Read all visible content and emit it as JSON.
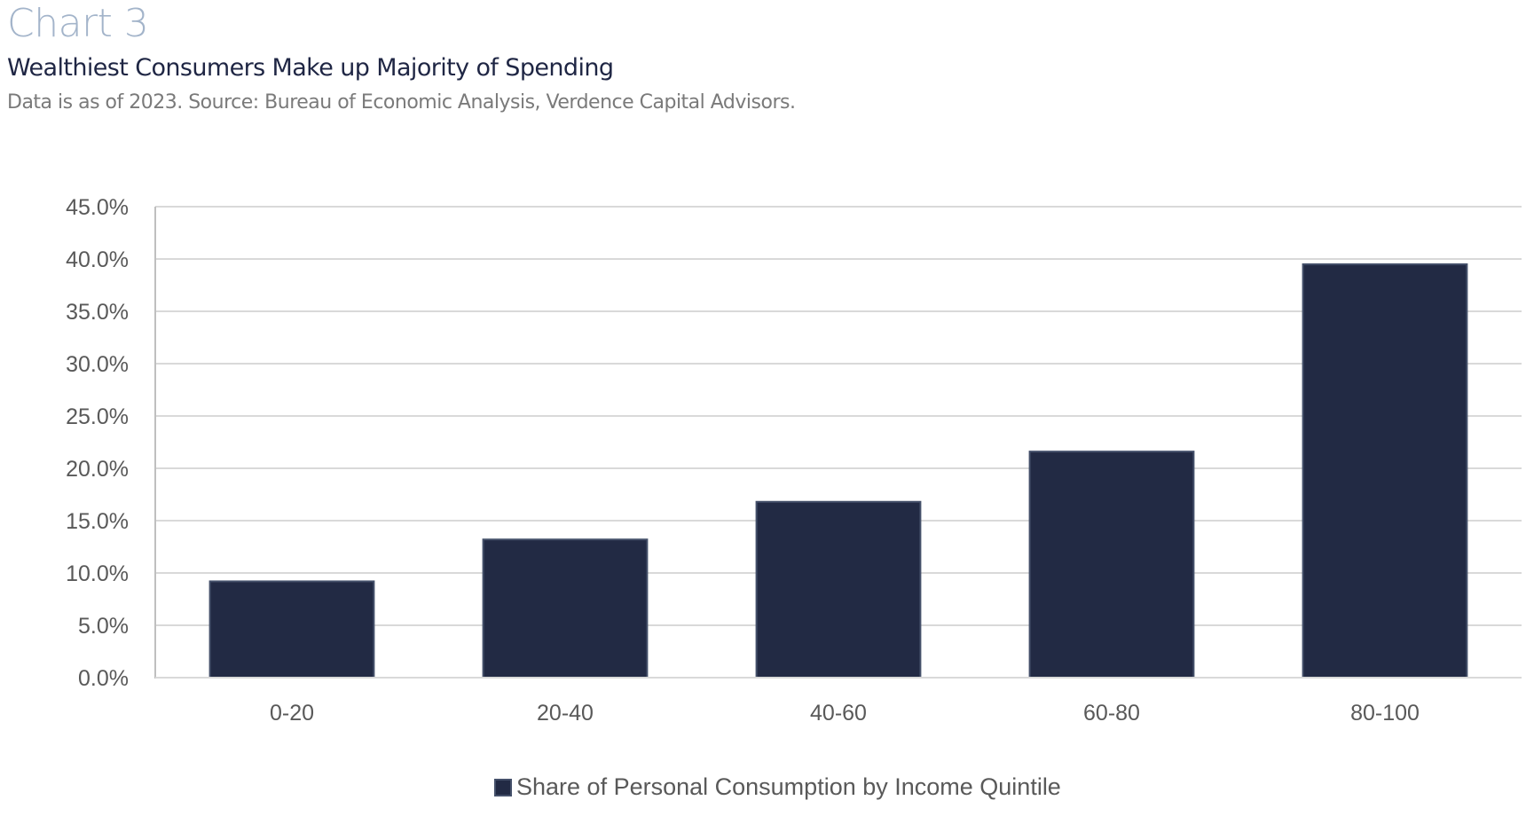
{
  "header": {
    "eyebrow": "Chart 3",
    "title": "Wealthiest Consumers Make up Majority of Spending",
    "subtitle": "Data is as of 2023. Source: Bureau of Economic Analysis, Verdence Capital Advisors."
  },
  "colors": {
    "bar_fill": "#222A44",
    "bar_stroke": "#44506A",
    "grid": "#D9D9D9",
    "axis": "#BFBFBF"
  },
  "chart_data": {
    "type": "bar",
    "title": "Wealthiest Consumers Make up Majority of Spending",
    "xlabel": "",
    "ylabel": "",
    "categories": [
      "0-20",
      "20-40",
      "40-60",
      "60-80",
      "80-100"
    ],
    "series": [
      {
        "name": "Share of Personal Consumption by Income Quintile",
        "values": [
          9.2,
          13.2,
          16.8,
          21.6,
          39.5
        ]
      }
    ],
    "ylim": [
      0,
      45
    ],
    "yticks": [
      0,
      5,
      10,
      15,
      20,
      25,
      30,
      35,
      40,
      45
    ],
    "ytick_labels": [
      "0.0%",
      "5.0%",
      "10.0%",
      "15.0%",
      "20.0%",
      "25.0%",
      "30.0%",
      "35.0%",
      "40.0%",
      "45.0%"
    ],
    "grid": true,
    "legend": {
      "position": "bottom",
      "entries": [
        "Share of Personal Consumption by Income Quintile"
      ]
    }
  }
}
